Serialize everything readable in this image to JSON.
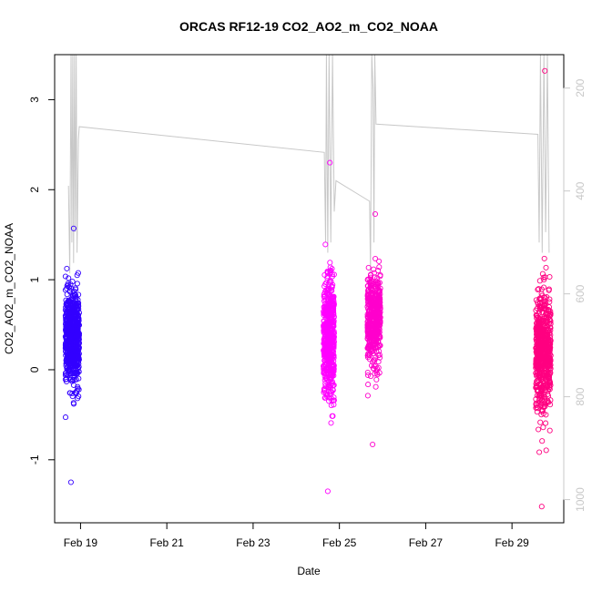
{
  "chart_data": {
    "type": "scatter",
    "title": "ORCAS RF12-19 CO2_AO2_m_CO2_NOAA",
    "xlabel": "Date",
    "ylabel": "CO2_AO2_m_CO2_NOAA",
    "x_ticks": [
      "Feb 19",
      "Feb 21",
      "Feb 23",
      "Feb 25",
      "Feb 27",
      "Feb 29"
    ],
    "x_tick_days": [
      19,
      21,
      23,
      25,
      27,
      29
    ],
    "xlim_days": [
      18.4,
      30.2
    ],
    "ylim": [
      -1.7,
      3.5
    ],
    "y_ticks": [
      -1,
      0,
      1,
      2,
      3
    ],
    "y2_ticks": [
      200,
      400,
      600,
      800,
      1000
    ],
    "y2lim": [
      1045,
      135
    ],
    "y2_color": "#c8c8c8",
    "series": [
      {
        "day_start": 18.65,
        "day_end": 18.97,
        "color": "#3300ff",
        "center": 0.35,
        "spread": 0.42,
        "min": -1.25,
        "max": 1.57,
        "n": 700
      },
      {
        "day_start": 24.63,
        "day_end": 24.88,
        "color": "#ff00ff",
        "center": 0.35,
        "spread": 0.55,
        "min": -1.35,
        "max": 2.3,
        "n": 600
      },
      {
        "day_start": 25.65,
        "day_end": 25.95,
        "color": "#ff00cc",
        "center": 0.55,
        "spread": 0.42,
        "min": -0.83,
        "max": 1.73,
        "n": 500
      },
      {
        "day_start": 29.55,
        "day_end": 29.9,
        "color": "#ff0080",
        "center": 0.2,
        "spread": 0.55,
        "min": -1.52,
        "max": 3.32,
        "n": 650
      }
    ],
    "altitude_trace": {
      "color": "#c8c8c8",
      "points": [
        [
          18.72,
          390
        ],
        [
          18.75,
          560
        ],
        [
          18.78,
          135
        ],
        [
          18.8,
          500
        ],
        [
          18.82,
          135
        ],
        [
          18.84,
          540
        ],
        [
          18.86,
          135
        ],
        [
          18.88,
          480
        ],
        [
          18.9,
          135
        ],
        [
          18.92,
          520
        ],
        [
          18.95,
          300
        ],
        [
          18.97,
          275
        ],
        [
          24.65,
          325
        ],
        [
          24.68,
          500
        ],
        [
          24.7,
          135
        ],
        [
          24.73,
          520
        ],
        [
          24.76,
          135
        ],
        [
          24.8,
          500
        ],
        [
          24.84,
          135
        ],
        [
          24.88,
          440
        ],
        [
          24.92,
          380
        ],
        [
          25.7,
          420
        ],
        [
          25.72,
          560
        ],
        [
          25.75,
          135
        ],
        [
          25.78,
          200
        ],
        [
          25.8,
          500
        ],
        [
          25.82,
          135
        ],
        [
          25.85,
          270
        ],
        [
          29.6,
          290
        ],
        [
          29.63,
          500
        ],
        [
          29.66,
          135
        ],
        [
          29.7,
          520
        ],
        [
          29.74,
          135
        ],
        [
          29.78,
          480
        ],
        [
          29.82,
          135
        ],
        [
          29.86,
          520
        ]
      ]
    }
  }
}
